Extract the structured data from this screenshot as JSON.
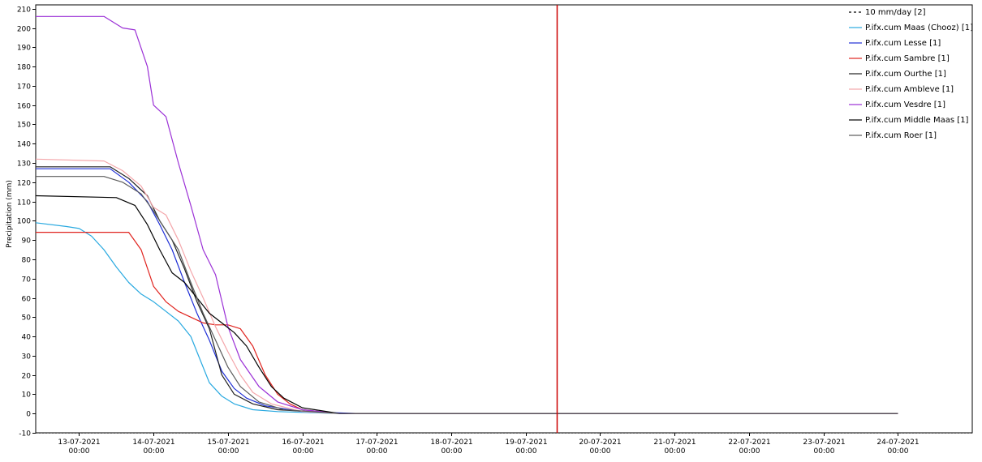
{
  "chart_data": {
    "type": "line",
    "title": "",
    "xlabel": "",
    "ylabel": "Precipitation (mm)",
    "ylim": [
      -10,
      212
    ],
    "xlim": [
      "2021-07-12T10:00",
      "2021-07-25T00:00"
    ],
    "yticks": [
      -10,
      0,
      10,
      20,
      30,
      40,
      50,
      60,
      70,
      80,
      90,
      100,
      110,
      120,
      130,
      140,
      150,
      160,
      170,
      180,
      190,
      200,
      210
    ],
    "xticks": [
      {
        "date": "2021-07-13T00:00",
        "line1": "13-07-2021",
        "line2": "00:00"
      },
      {
        "date": "2021-07-14T00:00",
        "line1": "14-07-2021",
        "line2": "00:00"
      },
      {
        "date": "2021-07-15T00:00",
        "line1": "15-07-2021",
        "line2": "00:00"
      },
      {
        "date": "2021-07-16T00:00",
        "line1": "16-07-2021",
        "line2": "00:00"
      },
      {
        "date": "2021-07-17T00:00",
        "line1": "17-07-2021",
        "line2": "00:00"
      },
      {
        "date": "2021-07-18T00:00",
        "line1": "18-07-2021",
        "line2": "00:00"
      },
      {
        "date": "2021-07-19T00:00",
        "line1": "19-07-2021",
        "line2": "00:00"
      },
      {
        "date": "2021-07-20T00:00",
        "line1": "20-07-2021",
        "line2": "00:00"
      },
      {
        "date": "2021-07-21T00:00",
        "line1": "21-07-2021",
        "line2": "00:00"
      },
      {
        "date": "2021-07-22T00:00",
        "line1": "22-07-2021",
        "line2": "00:00"
      },
      {
        "date": "2021-07-23T00:00",
        "line1": "23-07-2021",
        "line2": "00:00"
      },
      {
        "date": "2021-07-24T00:00",
        "line1": "24-07-2021",
        "line2": "00:00"
      }
    ],
    "grid": true,
    "legend_position": "top-right",
    "vertical_marker": {
      "date": "2021-07-19T10:00",
      "color": "#cc0000"
    },
    "series": [
      {
        "name": "10 mm/day [2]",
        "color": "#000000",
        "dash": true,
        "points": []
      },
      {
        "name": "P.ifx.cum Maas (Chooz) [1]",
        "color": "#29a9e0",
        "dash": false,
        "points": [
          [
            "2021-07-12T10:00",
            99
          ],
          [
            "2021-07-12T20:00",
            97
          ],
          [
            "2021-07-13T00:00",
            96
          ],
          [
            "2021-07-13T04:00",
            92
          ],
          [
            "2021-07-13T08:00",
            85
          ],
          [
            "2021-07-13T12:00",
            76
          ],
          [
            "2021-07-13T16:00",
            68
          ],
          [
            "2021-07-13T20:00",
            62
          ],
          [
            "2021-07-14T00:00",
            58
          ],
          [
            "2021-07-14T04:00",
            53
          ],
          [
            "2021-07-14T08:00",
            48
          ],
          [
            "2021-07-14T12:00",
            40
          ],
          [
            "2021-07-14T15:00",
            28
          ],
          [
            "2021-07-14T18:00",
            16
          ],
          [
            "2021-07-14T22:00",
            9
          ],
          [
            "2021-07-15T02:00",
            5
          ],
          [
            "2021-07-15T08:00",
            2
          ],
          [
            "2021-07-15T16:00",
            1
          ],
          [
            "2021-07-16T12:00",
            0
          ],
          [
            "2021-07-24T00:00",
            0
          ]
        ]
      },
      {
        "name": "P.ifx.cum Lesse [1]",
        "color": "#1f2fd6",
        "dash": false,
        "points": [
          [
            "2021-07-12T10:00",
            127
          ],
          [
            "2021-07-13T10:00",
            127
          ],
          [
            "2021-07-13T16:00",
            120
          ],
          [
            "2021-07-13T22:00",
            110
          ],
          [
            "2021-07-14T02:00",
            98
          ],
          [
            "2021-07-14T06:00",
            85
          ],
          [
            "2021-07-14T10:00",
            68
          ],
          [
            "2021-07-14T14:00",
            52
          ],
          [
            "2021-07-14T18:00",
            38
          ],
          [
            "2021-07-14T22:00",
            22
          ],
          [
            "2021-07-15T02:00",
            13
          ],
          [
            "2021-07-15T06:00",
            8
          ],
          [
            "2021-07-15T12:00",
            4
          ],
          [
            "2021-07-16T00:00",
            1
          ],
          [
            "2021-07-16T18:00",
            0
          ],
          [
            "2021-07-24T00:00",
            0
          ]
        ]
      },
      {
        "name": "P.ifx.cum Sambre [1]",
        "color": "#e0241f",
        "dash": false,
        "points": [
          [
            "2021-07-12T10:00",
            94
          ],
          [
            "2021-07-13T16:00",
            94
          ],
          [
            "2021-07-13T20:00",
            85
          ],
          [
            "2021-07-14T00:00",
            66
          ],
          [
            "2021-07-14T04:00",
            58
          ],
          [
            "2021-07-14T08:00",
            53
          ],
          [
            "2021-07-14T12:00",
            50
          ],
          [
            "2021-07-14T16:00",
            47
          ],
          [
            "2021-07-14T20:00",
            46
          ],
          [
            "2021-07-15T00:00",
            46
          ],
          [
            "2021-07-15T04:00",
            44
          ],
          [
            "2021-07-15T08:00",
            35
          ],
          [
            "2021-07-15T12:00",
            20
          ],
          [
            "2021-07-15T16:00",
            10
          ],
          [
            "2021-07-15T20:00",
            5
          ],
          [
            "2021-07-16T00:00",
            2
          ],
          [
            "2021-07-16T12:00",
            0
          ],
          [
            "2021-07-24T00:00",
            0
          ]
        ]
      },
      {
        "name": "P.ifx.cum Ourthe [1]",
        "color": "#202020",
        "dash": false,
        "points": [
          [
            "2021-07-12T10:00",
            128
          ],
          [
            "2021-07-13T10:00",
            128
          ],
          [
            "2021-07-13T16:00",
            122
          ],
          [
            "2021-07-13T22:00",
            113
          ],
          [
            "2021-07-14T02:00",
            100
          ],
          [
            "2021-07-14T06:00",
            90
          ],
          [
            "2021-07-14T10:00",
            75
          ],
          [
            "2021-07-14T14:00",
            58
          ],
          [
            "2021-07-14T18:00",
            44
          ],
          [
            "2021-07-14T22:00",
            20
          ],
          [
            "2021-07-15T02:00",
            10
          ],
          [
            "2021-07-15T08:00",
            5
          ],
          [
            "2021-07-15T16:00",
            2
          ],
          [
            "2021-07-16T12:00",
            0
          ],
          [
            "2021-07-24T00:00",
            0
          ]
        ]
      },
      {
        "name": "P.ifx.cum Ambleve [1]",
        "color": "#f4a6aa",
        "dash": false,
        "points": [
          [
            "2021-07-12T10:00",
            132
          ],
          [
            "2021-07-13T08:00",
            131
          ],
          [
            "2021-07-13T14:00",
            126
          ],
          [
            "2021-07-13T20:00",
            118
          ],
          [
            "2021-07-14T00:00",
            107
          ],
          [
            "2021-07-14T04:00",
            103
          ],
          [
            "2021-07-14T08:00",
            90
          ],
          [
            "2021-07-14T12:00",
            74
          ],
          [
            "2021-07-14T16:00",
            60
          ],
          [
            "2021-07-14T20:00",
            45
          ],
          [
            "2021-07-15T00:00",
            32
          ],
          [
            "2021-07-15T04:00",
            20
          ],
          [
            "2021-07-15T08:00",
            11
          ],
          [
            "2021-07-15T14:00",
            5
          ],
          [
            "2021-07-16T00:00",
            1
          ],
          [
            "2021-07-16T12:00",
            0
          ],
          [
            "2021-07-24T00:00",
            0
          ]
        ]
      },
      {
        "name": "P.ifx.cum Vesdre [1]",
        "color": "#9b30d6",
        "dash": false,
        "points": [
          [
            "2021-07-12T10:00",
            206
          ],
          [
            "2021-07-13T08:00",
            206
          ],
          [
            "2021-07-13T14:00",
            200
          ],
          [
            "2021-07-13T18:00",
            199
          ],
          [
            "2021-07-13T22:00",
            180
          ],
          [
            "2021-07-14T00:00",
            160
          ],
          [
            "2021-07-14T04:00",
            154
          ],
          [
            "2021-07-14T08:00",
            130
          ],
          [
            "2021-07-14T12:00",
            108
          ],
          [
            "2021-07-14T16:00",
            85
          ],
          [
            "2021-07-14T20:00",
            72
          ],
          [
            "2021-07-15T00:00",
            45
          ],
          [
            "2021-07-15T04:00",
            28
          ],
          [
            "2021-07-15T10:00",
            14
          ],
          [
            "2021-07-15T16:00",
            6
          ],
          [
            "2021-07-16T00:00",
            2
          ],
          [
            "2021-07-16T12:00",
            0
          ],
          [
            "2021-07-24T00:00",
            0
          ]
        ]
      },
      {
        "name": "P.ifx.cum Middle Maas [1]",
        "color": "#000000",
        "dash": false,
        "points": [
          [
            "2021-07-12T10:00",
            113
          ],
          [
            "2021-07-13T12:00",
            112
          ],
          [
            "2021-07-13T18:00",
            108
          ],
          [
            "2021-07-13T22:00",
            98
          ],
          [
            "2021-07-14T02:00",
            85
          ],
          [
            "2021-07-14T06:00",
            73
          ],
          [
            "2021-07-14T10:00",
            68
          ],
          [
            "2021-07-14T14:00",
            60
          ],
          [
            "2021-07-14T18:00",
            52
          ],
          [
            "2021-07-14T22:00",
            47
          ],
          [
            "2021-07-15T02:00",
            42
          ],
          [
            "2021-07-15T06:00",
            35
          ],
          [
            "2021-07-15T10:00",
            24
          ],
          [
            "2021-07-15T14:00",
            14
          ],
          [
            "2021-07-15T18:00",
            8
          ],
          [
            "2021-07-16T00:00",
            3
          ],
          [
            "2021-07-16T12:00",
            0
          ],
          [
            "2021-07-24T00:00",
            0
          ]
        ]
      },
      {
        "name": "P.ifx.cum Roer [1]",
        "color": "#5a5a5a",
        "dash": false,
        "points": [
          [
            "2021-07-12T10:00",
            123
          ],
          [
            "2021-07-13T08:00",
            123
          ],
          [
            "2021-07-13T14:00",
            120
          ],
          [
            "2021-07-13T20:00",
            114
          ],
          [
            "2021-07-14T00:00",
            105
          ],
          [
            "2021-07-14T04:00",
            95
          ],
          [
            "2021-07-14T08:00",
            85
          ],
          [
            "2021-07-14T12:00",
            68
          ],
          [
            "2021-07-14T16:00",
            52
          ],
          [
            "2021-07-14T20:00",
            38
          ],
          [
            "2021-07-15T00:00",
            24
          ],
          [
            "2021-07-15T04:00",
            14
          ],
          [
            "2021-07-15T10:00",
            6
          ],
          [
            "2021-07-15T18:00",
            2
          ],
          [
            "2021-07-16T12:00",
            0
          ],
          [
            "2021-07-24T00:00",
            0
          ]
        ]
      }
    ]
  }
}
